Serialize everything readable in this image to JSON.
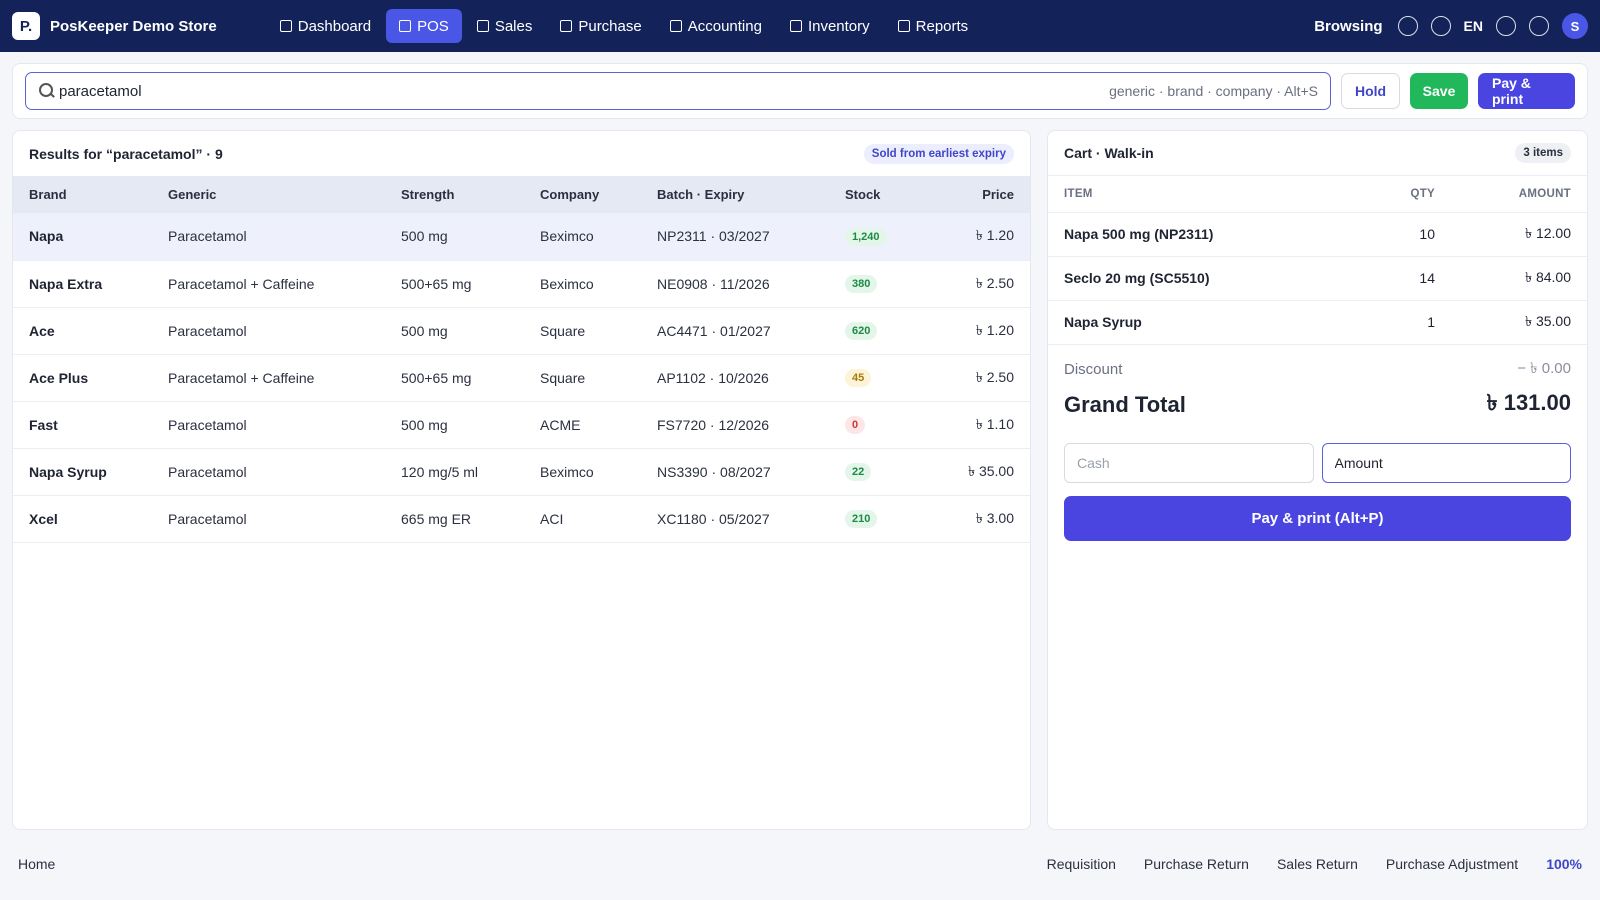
{
  "app": {
    "logo_letter": "P.",
    "store_name": "PosKeeper Demo Store"
  },
  "nav": {
    "items": [
      {
        "label": "Dashboard",
        "active": false
      },
      {
        "label": "POS",
        "active": true
      },
      {
        "label": "Sales",
        "active": false
      },
      {
        "label": "Purchase",
        "active": false
      },
      {
        "label": "Accounting",
        "active": false
      },
      {
        "label": "Inventory",
        "active": false
      },
      {
        "label": "Reports",
        "active": false
      }
    ],
    "browsing_label": "Browsing",
    "language": "EN",
    "avatar_letter": "S"
  },
  "search": {
    "value": "paracetamol",
    "hint": "generic · brand · company · Alt+S"
  },
  "actions": {
    "hold": "Hold",
    "save": "Save",
    "pay_print": "Pay & print"
  },
  "results": {
    "title": "Results for “paracetamol” · 9",
    "expiry_badge": "Sold from earliest expiry",
    "columns": [
      "Brand",
      "Generic",
      "Strength",
      "Company",
      "Batch · Expiry",
      "Stock",
      "Price"
    ],
    "rows": [
      {
        "brand": "Napa",
        "generic": "Paracetamol",
        "strength": "500 mg",
        "company": "Beximco",
        "batch": "NP2311 · 03/2027",
        "stock": "1,240",
        "stock_level": "good",
        "price": "৳ 1.20"
      },
      {
        "brand": "Napa Extra",
        "generic": "Paracetamol + Caffeine",
        "strength": "500+65 mg",
        "company": "Beximco",
        "batch": "NE0908 · 11/2026",
        "stock": "380",
        "stock_level": "good",
        "price": "৳ 2.50"
      },
      {
        "brand": "Ace",
        "generic": "Paracetamol",
        "strength": "500 mg",
        "company": "Square",
        "batch": "AC4471 · 01/2027",
        "stock": "620",
        "stock_level": "good",
        "price": "৳ 1.20"
      },
      {
        "brand": "Ace Plus",
        "generic": "Paracetamol + Caffeine",
        "strength": "500+65 mg",
        "company": "Square",
        "batch": "AP1102 · 10/2026",
        "stock": "45",
        "stock_level": "low",
        "price": "৳ 2.50"
      },
      {
        "brand": "Fast",
        "generic": "Paracetamol",
        "strength": "500 mg",
        "company": "ACME",
        "batch": "FS7720 · 12/2026",
        "stock": "0",
        "stock_level": "out",
        "price": "৳ 1.10"
      },
      {
        "brand": "Napa Syrup",
        "generic": "Paracetamol",
        "strength": "120 mg/5 ml",
        "company": "Beximco",
        "batch": "NS3390 · 08/2027",
        "stock": "22",
        "stock_level": "good",
        "price": "৳ 35.00"
      },
      {
        "brand": "Xcel",
        "generic": "Paracetamol",
        "strength": "665 mg ER",
        "company": "ACI",
        "batch": "XC1180 · 05/2027",
        "stock": "210",
        "stock_level": "good",
        "price": "৳ 3.00"
      }
    ]
  },
  "cart": {
    "title": "Cart · Walk-in",
    "items_badge": "3 items",
    "columns": [
      "ITEM",
      "QTY",
      "AMOUNT"
    ],
    "rows": [
      {
        "item": "Napa 500 mg (NP2311)",
        "qty": "10",
        "amount": "৳ 12.00"
      },
      {
        "item": "Seclo 20 mg (SC5510)",
        "qty": "14",
        "amount": "৳ 84.00"
      },
      {
        "item": "Napa Syrup",
        "qty": "1",
        "amount": "৳ 35.00"
      }
    ],
    "discount_label": "Discount",
    "discount_value": "− ৳ 0.00",
    "grand_total_label": "Grand Total",
    "grand_total_value": "৳ 131.00",
    "cash_placeholder": "Cash",
    "amount_placeholder": "Amount",
    "pay_button": "Pay & print (Alt+P)"
  },
  "footer": {
    "home": "Home",
    "links": [
      "Requisition",
      "Purchase Return",
      "Sales Return",
      "Purchase Adjustment"
    ],
    "zoom": "100%"
  },
  "colors": {
    "nav_bg": "#13235a",
    "accent": "#4a45e0",
    "save_green": "#21b85c",
    "stock_good_bg": "#e3f6e9",
    "stock_good_fg": "#1d8a45",
    "stock_low_bg": "#fdf3d6",
    "stock_low_fg": "#a87a0c",
    "stock_out_bg": "#fde6e6",
    "stock_out_fg": "#c73a3a"
  }
}
